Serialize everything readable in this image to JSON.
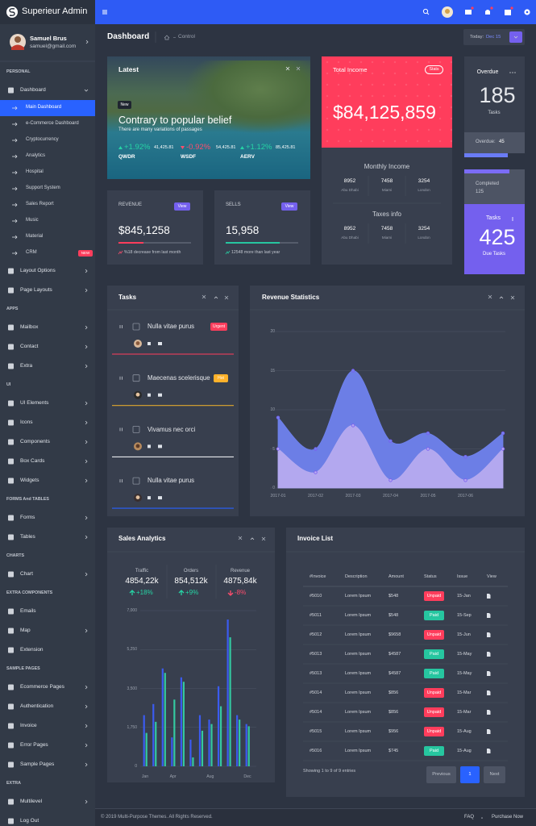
{
  "sidebar": {
    "brand": "Superieur Admin",
    "user": {
      "name": "Samuel Brus",
      "email": "samuel@gmail.com"
    },
    "sections": [
      {
        "title": "PERSONAL",
        "items": [
          {
            "label": "Dashboard",
            "submenu": true,
            "children": [
              {
                "label": "Main Dashboard",
                "active": true
              },
              {
                "label": "e-Commerce Dashboard"
              },
              {
                "label": "Cryptocurrency"
              },
              {
                "label": "Analytics"
              },
              {
                "label": "Hospital"
              },
              {
                "label": "Support System"
              },
              {
                "label": "Sales Report"
              },
              {
                "label": "Music"
              },
              {
                "label": "Material"
              },
              {
                "label": "CRM",
                "badge": "NEW"
              }
            ]
          },
          {
            "label": "Layout Options",
            "submenu": true
          },
          {
            "label": "Page Layouts",
            "submenu": true
          }
        ]
      },
      {
        "title": "APPS",
        "items": [
          {
            "label": "Mailbox",
            "submenu": true
          },
          {
            "label": "Contact",
            "submenu": true
          },
          {
            "label": "Extra",
            "submenu": true
          }
        ]
      },
      {
        "title": "UI",
        "items": [
          {
            "label": "UI Elements",
            "submenu": true
          },
          {
            "label": "Icons",
            "submenu": true
          },
          {
            "label": "Components",
            "submenu": true
          },
          {
            "label": "Box Cards",
            "submenu": true
          },
          {
            "label": "Widgets",
            "submenu": true
          }
        ]
      },
      {
        "title": "FORMS And TABLES",
        "items": [
          {
            "label": "Forms",
            "submenu": true
          },
          {
            "label": "Tables",
            "submenu": true
          }
        ]
      },
      {
        "title": "CHARTS",
        "items": [
          {
            "label": "Chart",
            "submenu": true
          }
        ]
      },
      {
        "title": "EXTRA COMPONENTS",
        "items": [
          {
            "label": "Emails"
          },
          {
            "label": "Map",
            "submenu": true
          },
          {
            "label": "Extension"
          }
        ]
      },
      {
        "title": "SAMPLE PAGES",
        "items": [
          {
            "label": "Ecommerce Pages",
            "submenu": true
          },
          {
            "label": "Authentication",
            "submenu": true
          },
          {
            "label": "Invoice",
            "submenu": true
          },
          {
            "label": "Error Pages",
            "submenu": true
          },
          {
            "label": "Sample Pages",
            "submenu": true
          }
        ]
      },
      {
        "title": "EXTRA",
        "items": [
          {
            "label": "Multilevel",
            "submenu": true
          },
          {
            "label": "Log Out"
          }
        ]
      }
    ]
  },
  "header": {
    "title": "Dashboard",
    "breadcrumb": "Control",
    "today_label": "Today:",
    "today_value": "Dec 15"
  },
  "latest": {
    "title": "Latest",
    "badge": "New",
    "headline": "Contrary to popular belief",
    "subline": "There are many variations of passages",
    "tickers": [
      {
        "change": "+1.92%",
        "value": "41,425.81",
        "symbol": "QWDR"
      },
      {
        "change": "-0.92%",
        "value": "54,425.81",
        "symbol": "WSDF"
      },
      {
        "change": "+1.12%",
        "value": "85,425.81",
        "symbol": "AERV"
      }
    ]
  },
  "income": {
    "title": "Total Income",
    "badge": "Stats",
    "amount": "$84,125,859",
    "groups": [
      {
        "title": "Monthly Income",
        "cols": [
          {
            "value": "8952",
            "label": "Abu Dhabi"
          },
          {
            "value": "7458",
            "label": "Miami"
          },
          {
            "value": "3254",
            "label": "London"
          }
        ]
      },
      {
        "title": "Taxes info",
        "cols": [
          {
            "value": "8952",
            "label": "Abu Dhabi"
          },
          {
            "value": "7458",
            "label": "Miami"
          },
          {
            "value": "3254",
            "label": "London"
          }
        ]
      }
    ]
  },
  "overdue": {
    "title": "Overdue",
    "value": "185",
    "unit": "Tasks",
    "footer_label": "Overdue:",
    "footer_value": "45"
  },
  "due_tasks": {
    "top_label": "Completed",
    "top_value": "125",
    "title": "Tasks",
    "value": "425",
    "unit": "Due Tasks"
  },
  "revenue": {
    "title": "REVENUE",
    "button": "View",
    "value": "$845,1258",
    "note": "%18 decrease from last month"
  },
  "sells": {
    "title": "SELLS",
    "button": "View",
    "value": "15,958",
    "note": "12548 more than last year"
  },
  "tasks": {
    "title": "Tasks",
    "items": [
      {
        "text": "Nulla vitae purus",
        "badge": "Urgent",
        "badge_color": "#ff3d5c",
        "color": "#ff3d5c"
      },
      {
        "text": "Maecenas scelerisque",
        "badge": "Hot",
        "badge_color": "#ffb22b",
        "color": "#e0a82e"
      },
      {
        "text": "Vivamus nec orci",
        "color": "#e6e8ec"
      },
      {
        "text": "Nulla vitae purus",
        "color": "#2962ff"
      }
    ]
  },
  "chart_data": [
    {
      "type": "area",
      "title": "Revenue Statistics",
      "categories": [
        "2017-01",
        "2017-02",
        "2017-03",
        "2017-04",
        "2017-05",
        "2017-06",
        null
      ],
      "series": [
        {
          "color": "#6f82ee",
          "values": [
            9,
            5,
            15,
            6,
            7,
            4,
            7
          ]
        },
        {
          "color": "#b7abef",
          "values": [
            5,
            2,
            8,
            1,
            5,
            1,
            5
          ]
        }
      ],
      "ylim": [
        0,
        20
      ],
      "yticks": [
        0,
        5,
        10,
        15,
        20
      ],
      "grid": true
    },
    {
      "type": "bar",
      "title": "Sales Analytics",
      "categories": [
        "Jan",
        null,
        null,
        "Apr",
        null,
        null,
        null,
        "Aug",
        null,
        null,
        null,
        "Dec"
      ],
      "series": [
        {
          "color": "#3b5bf0",
          "values": [
            2300,
            2800,
            4400,
            1300,
            4000,
            1200,
            2300,
            2100,
            3600,
            6600,
            2300,
            1900
          ]
        },
        {
          "color": "#34c9a0",
          "values": [
            1500,
            2000,
            4200,
            3000,
            3800,
            400,
            1600,
            1900,
            2700,
            5800,
            2100,
            1800
          ]
        }
      ],
      "ylim": [
        0,
        7000
      ],
      "yticks": [
        0,
        {
          "value": 1750,
          "label": "1,750"
        },
        {
          "value": 3500,
          "label": "3,500"
        },
        {
          "value": 5250,
          "label": "5,250"
        },
        {
          "value": 7000,
          "label": "7,000"
        }
      ],
      "grid": true
    }
  ],
  "sales_stats": [
    {
      "label": "Traffic",
      "value": "4854,22k",
      "change": "+18%"
    },
    {
      "label": "Orders",
      "value": "854,512k",
      "change": "+9%"
    },
    {
      "label": "Revenue",
      "value": "4875,84k",
      "change": "-8%"
    }
  ],
  "invoice": {
    "title": "Invoice List",
    "columns": [
      "#Invoice",
      "Description",
      "Amount",
      "Status",
      "Issue",
      "View"
    ],
    "rows": [
      [
        "#5010",
        "Lorem Ipsum",
        "$548",
        "Unpaid",
        "15-Jan"
      ],
      [
        "#5011",
        "Lorem Ipsum",
        "$548",
        "Paid",
        "15-Sep"
      ],
      [
        "#5012",
        "Lorem Ipsum",
        "$9658",
        "Unpaid",
        "15-Jun"
      ],
      [
        "#5013",
        "Lorem Ipsum",
        "$4587",
        "Paid",
        "15-May"
      ],
      [
        "#5013",
        "Lorem Ipsum",
        "$4587",
        "Paid",
        "15-May"
      ],
      [
        "#5014",
        "Lorem Ipsum",
        "$856",
        "Unpaid",
        "15-Mar"
      ],
      [
        "#5014",
        "Lorem Ipsum",
        "$856",
        "Unpaid",
        "15-Mar"
      ],
      [
        "#5015",
        "Lorem Ipsum",
        "$956",
        "Unpaid",
        "15-Aug"
      ],
      [
        "#5016",
        "Lorem Ipsum",
        "$745",
        "Paid",
        "15-Aug"
      ]
    ],
    "status_colors": {
      "Paid": "#26c6a0",
      "Unpaid": "#ff3d5c"
    },
    "info": "Showing 1 to 9 of 9 entries",
    "pagination": [
      "Previous",
      "1",
      "Next"
    ]
  },
  "footer": {
    "copyright": "© 2019 Multi-Purpose Themes. All Rights Reserved.",
    "links": [
      "FAQ",
      "Purchase Now"
    ]
  }
}
